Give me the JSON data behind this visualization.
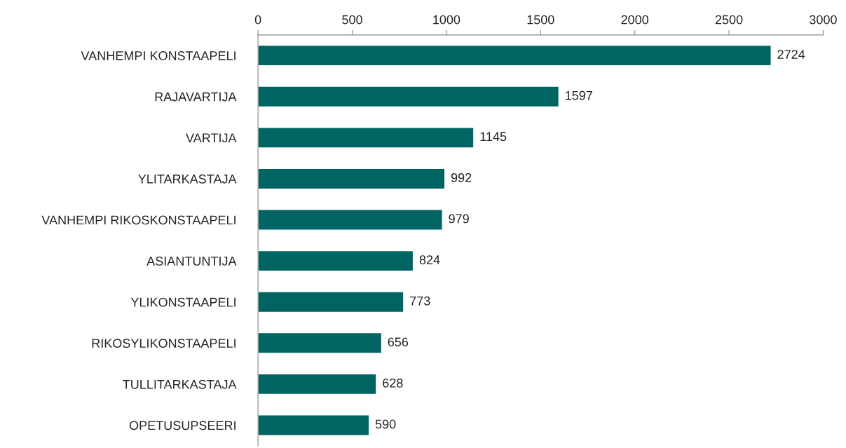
{
  "chart_data": {
    "type": "bar",
    "orientation": "horizontal",
    "categories": [
      "VANHEMPI KONSTAAPELI",
      "RAJAVARTIJA",
      "VARTIJA",
      "YLITARKASTAJA",
      "VANHEMPI RIKOSKONSTAAPELI",
      "ASIANTUNTIJA",
      "YLIKONSTAAPELI",
      "RIKOSYLIKONSTAAPELI",
      "TULLITARKASTAJA",
      "OPETUSUPSEERI"
    ],
    "values": [
      2724,
      1597,
      1145,
      992,
      979,
      824,
      773,
      656,
      628,
      590
    ],
    "color": "#006462",
    "xlim": [
      0,
      3000
    ],
    "xticks": [
      0,
      500,
      1000,
      1500,
      2000,
      2500,
      3000
    ],
    "data_labels": true,
    "grid": false,
    "legend": false
  }
}
